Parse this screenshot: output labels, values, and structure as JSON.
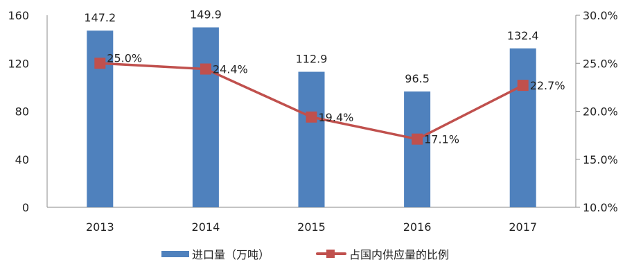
{
  "chart_data": {
    "type": "bar+line",
    "title": "",
    "categories": [
      "2013",
      "2014",
      "2015",
      "2016",
      "2017"
    ],
    "series": [
      {
        "name": "进口量（万吨）",
        "type": "bar",
        "axis": "left",
        "color": "#4f81bd",
        "values": [
          147.2,
          149.9,
          112.9,
          96.5,
          132.4
        ],
        "labels": [
          "147.2",
          "149.9",
          "112.9",
          "96.5",
          "132.4"
        ]
      },
      {
        "name": "占国内供应量的比例",
        "type": "line",
        "axis": "right",
        "color": "#c0504d",
        "values": [
          25.0,
          24.4,
          19.4,
          17.1,
          22.7
        ],
        "labels": [
          "25.0%",
          "24.4%",
          "19.4%",
          "17.1%",
          "22.7%"
        ]
      }
    ],
    "left_axis": {
      "min": 0,
      "max": 160,
      "ticks": [
        "0",
        "40",
        "80",
        "120",
        "160"
      ]
    },
    "right_axis": {
      "min": 10,
      "max": 30,
      "ticks": [
        "10.0%",
        "15.0%",
        "20.0%",
        "25.0%",
        "30.0%"
      ]
    },
    "grid": false,
    "legend_position": "bottom"
  },
  "legend": {
    "bar_label": "进口量（万吨）",
    "line_label": "占国内供应量的比例"
  }
}
